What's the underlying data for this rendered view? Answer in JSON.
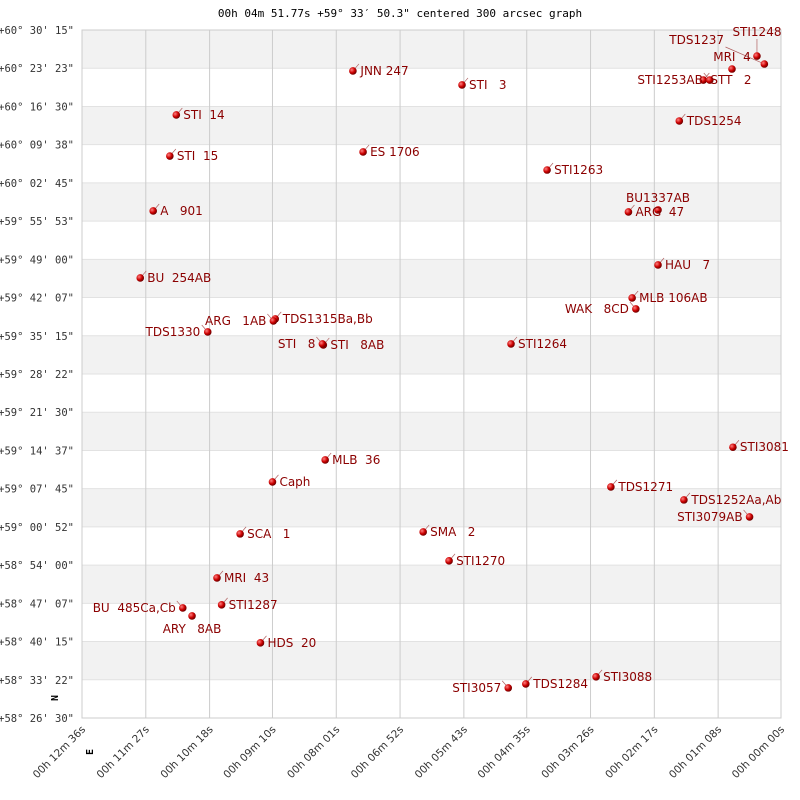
{
  "chart_data": {
    "type": "scatter",
    "title": "00h 04m 51.77s +59° 33′ 50.3\" centered 300 arcsec graph",
    "direction_labels": {
      "north": "N",
      "east": "E"
    },
    "x_axis": {
      "quantity": "right ascension",
      "reversed": true,
      "range": [
        "00h 12m 36s",
        "00h 00m 00s"
      ],
      "ticks": [
        "00h 12m 36s",
        "00h 11m 27s",
        "00h 10m 18s",
        "00h 09m 10s",
        "00h 08m 01s",
        "00h 06m 52s",
        "00h 05m 43s",
        "00h 04m 35s",
        "00h 03m 26s",
        "00h 02m 17s",
        "00h 01m 08s",
        "00h 00m 00s"
      ],
      "grid": true
    },
    "y_axis": {
      "quantity": "declination",
      "range": [
        "+58° 26' 30\"",
        "+60° 30' 15\""
      ],
      "ticks": [
        "+60° 30' 15\"",
        "+60° 23' 23\"",
        "+60° 16' 30\"",
        "+60° 09' 38\"",
        "+60° 02' 45\"",
        "+59° 55' 53\"",
        "+59° 49' 00\"",
        "+59° 42' 07\"",
        "+59° 35' 15\"",
        "+59° 28' 22\"",
        "+59° 21' 30\"",
        "+59° 14' 37\"",
        "+59° 07' 45\"",
        "+59° 00' 52\"",
        "+58° 54' 00\"",
        "+58° 47' 07\"",
        "+58° 40' 15\"",
        "+58° 33' 22\"",
        "+58° 26' 30\""
      ],
      "banded_grid": true
    },
    "colors": {
      "point": "#cc0000",
      "label": "#8b0000",
      "band": "#f2f2f2",
      "grid": "#cccccc"
    },
    "points": [
      {
        "name": "JNN 247",
        "ra": "00h 07m 43s",
        "dec": "+60° 22' 53\""
      },
      {
        "name": "STI   3",
        "ra": "00h 05m 45s",
        "dec": "+60° 20' 22\""
      },
      {
        "name": "STI  14",
        "ra": "00h 10m 54s",
        "dec": "+60° 14' 58\""
      },
      {
        "name": "STI  15",
        "ra": "00h 11m 01s",
        "dec": "+60° 07' 35\""
      },
      {
        "name": "ES 1706",
        "ra": "00h 07m 32s",
        "dec": "+60° 08' 19\""
      },
      {
        "name": "STI1263",
        "ra": "00h 04m 13s",
        "dec": "+60° 05' 04\""
      },
      {
        "name": "A   901",
        "ra": "00h 11m 19s",
        "dec": "+59° 57' 42\""
      },
      {
        "name": "ARG  47",
        "ra": "00h 02m 45s",
        "dec": "+59° 57' 31\""
      },
      {
        "name": "BU1337AB",
        "ra": "00h 02m 13s",
        "dec": "+59° 57' 53\""
      },
      {
        "name": "HAU   7",
        "ra": "00h 02m 13s",
        "dec": "+59° 47' 59\""
      },
      {
        "name": "BU  254AB",
        "ra": "00h 11m 33s",
        "dec": "+59° 45' 39\""
      },
      {
        "name": "MLB 106AB",
        "ra": "00h 02m 41s",
        "dec": "+59° 42' 03\""
      },
      {
        "name": "WAK   8CD",
        "ra": "00h 02m 37s",
        "dec": "+59° 40' 05\""
      },
      {
        "name": "TDS1315Ba,Bb",
        "ra": "00h 09m 07s",
        "dec": "+59° 38' 17\""
      },
      {
        "name": "ARG   1AB",
        "ra": "00h 09m 09s",
        "dec": "+59° 37' 55\""
      },
      {
        "name": "TDS1330",
        "ra": "00h 10m 20s",
        "dec": "+59° 35' 56\""
      },
      {
        "name": "STI   8AB",
        "ra": "00h 08m 15s",
        "dec": "+59° 33' 36\""
      },
      {
        "name": "STI   8",
        "ra": "00h 08m 16s",
        "dec": "+59° 33' 47\""
      },
      {
        "name": "STI1264",
        "ra": "00h 04m 52s",
        "dec": "+59° 33' 47\""
      },
      {
        "name": "TDS1254",
        "ra": "00h 01m 50s",
        "dec": "+60° 13' 53\""
      },
      {
        "name": "STT   2",
        "ra": "00h 01m 24s",
        "dec": "+60° 21' 15\""
      },
      {
        "name": "STI1253AB",
        "ra": "00h 01m 17s",
        "dec": "+60° 21' 15\""
      },
      {
        "name": "MRI  4",
        "ra": "00h 00m 53s",
        "dec": "+60° 23' 14\""
      },
      {
        "name": "STI1248",
        "ra": "00h 00m 26s",
        "dec": "+60° 25' 34\""
      },
      {
        "name": "TDS1237",
        "ra": "00h 00m 18s",
        "dec": "+60° 24' 08\""
      },
      {
        "name": "STI3081",
        "ra": "00h 00m 52s",
        "dec": "+59° 15' 12\""
      },
      {
        "name": "MLB  36",
        "ra": "00h 08m 13s",
        "dec": "+59° 12' 55\""
      },
      {
        "name": "Caph",
        "ra": "00h 09m 10s",
        "dec": "+59° 08' 58\""
      },
      {
        "name": "TDS1271",
        "ra": "00h 03m 04s",
        "dec": "+59° 08' 04\""
      },
      {
        "name": "TDS1252Aa,Ab",
        "ra": "00h 01m 45s",
        "dec": "+59° 05' 44\""
      },
      {
        "name": "STI3079AB",
        "ra": "00h 00m 34s",
        "dec": "+59° 02' 40\""
      },
      {
        "name": "SCA   1",
        "ra": "00h 09m 45s",
        "dec": "+58° 59' 37\""
      },
      {
        "name": "SMA   2",
        "ra": "00h 06m 27s",
        "dec": "+58° 59' 58\""
      },
      {
        "name": "STI1270",
        "ra": "00h 05m 59s",
        "dec": "+58° 54' 46\""
      },
      {
        "name": "MRI  43",
        "ra": "00h 10m 10s",
        "dec": "+58° 51' 42\""
      },
      {
        "name": "STI1287",
        "ra": "00h 10m 05s",
        "dec": "+58° 46' 51\""
      },
      {
        "name": "BU  485Ca,Cb",
        "ra": "00h 10m 47s",
        "dec": "+58° 46' 18\""
      },
      {
        "name": "ARY   8AB",
        "ra": "00h 10m 37s",
        "dec": "+58° 44' 52\""
      },
      {
        "name": "HDS  20",
        "ra": "00h 09m 23s",
        "dec": "+58° 40' 01\""
      },
      {
        "name": "STI3088",
        "ra": "00h 03m 20s",
        "dec": "+58° 33' 54\""
      },
      {
        "name": "TDS1284",
        "ra": "00h 04m 36s",
        "dec": "+58° 32' 38\""
      },
      {
        "name": "STI3057",
        "ra": "00h 04m 55s",
        "dec": "+58° 31' 55\""
      }
    ]
  }
}
